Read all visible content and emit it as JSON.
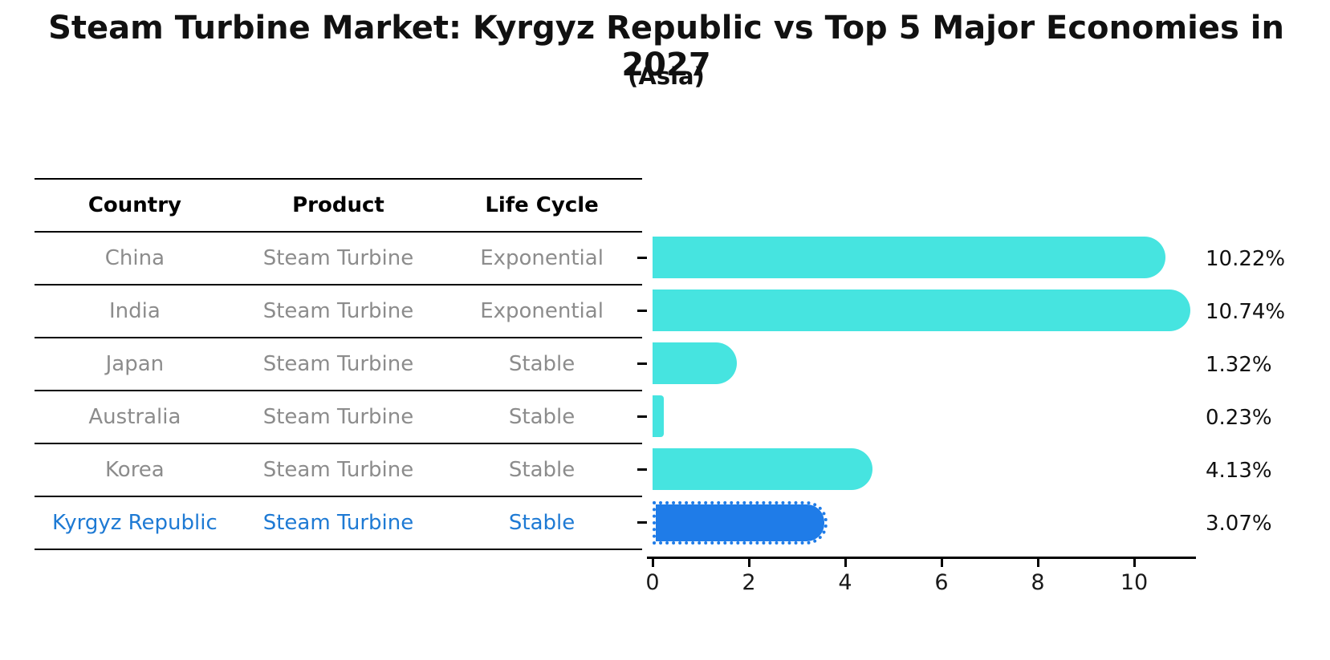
{
  "title": "Steam Turbine Market: Kyrgyz Republic vs Top 5 Major Economies in 2027",
  "subtitle": "(Asia)",
  "table": {
    "headers": {
      "country": "Country",
      "product": "Product",
      "life_cycle": "Life Cycle"
    },
    "rows": [
      {
        "country": "China",
        "product": "Steam Turbine",
        "life_cycle": "Exponential"
      },
      {
        "country": "India",
        "product": "Steam Turbine",
        "life_cycle": "Exponential"
      },
      {
        "country": "Japan",
        "product": "Steam Turbine",
        "life_cycle": "Stable"
      },
      {
        "country": "Australia",
        "product": "Steam Turbine",
        "life_cycle": "Stable"
      },
      {
        "country": "Korea",
        "product": "Steam Turbine",
        "life_cycle": "Stable"
      },
      {
        "country": "Kyrgyz Republic",
        "product": "Steam Turbine",
        "life_cycle": "Stable"
      }
    ],
    "highlight_row_index": 5
  },
  "chart_data": {
    "type": "bar",
    "orientation": "horizontal",
    "title": "Steam Turbine Market: Kyrgyz Republic vs Top 5 Major Economies in 2027 (Asia)",
    "categories": [
      "China",
      "India",
      "Japan",
      "Australia",
      "Korea",
      "Kyrgyz Republic"
    ],
    "values": [
      10.22,
      10.74,
      1.32,
      0.23,
      4.13,
      3.07
    ],
    "value_labels": [
      "10.22%",
      "10.74%",
      "1.32%",
      "0.23%",
      "4.13%",
      "3.07%"
    ],
    "xlabel": "",
    "ylabel": "",
    "x_ticks": [
      0,
      2,
      4,
      6,
      8,
      10
    ],
    "xlim": [
      0,
      11.3
    ],
    "grid": false,
    "legend": false,
    "bar_color": "#46e4e0",
    "highlight_color": "#1f7ce8",
    "highlight_index": 5,
    "highlight_edge_style": "dotted"
  },
  "colors": {
    "text": "#111111",
    "muted_text": "#8c8c8c",
    "highlight_text": "#1e7ad4",
    "bar": "#46e4e0",
    "highlight_bar": "#1f7ce8",
    "axis": "#000000"
  }
}
